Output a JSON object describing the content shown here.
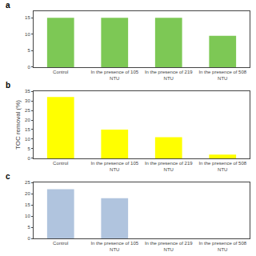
{
  "chart_data": [
    {
      "type": "bar",
      "title": "a",
      "categories": [
        "Control",
        "In the presence of 105\nNTU",
        "In the presence of 219\nNTU",
        "In the presence of 508\nNTU"
      ],
      "values": [
        15.0,
        15.0,
        15.0,
        9.5
      ],
      "color": "#7DC855",
      "ylim": [
        0,
        17
      ],
      "yticks": [
        0,
        5,
        10,
        15
      ],
      "grid": false
    },
    {
      "type": "bar",
      "title": "b",
      "ylabel": "TOC removal (%)",
      "categories": [
        "Control",
        "In the presence of 105\nNTU",
        "In the presence of 219\nNTU",
        "In the presence of 508\nNTU"
      ],
      "values": [
        32.0,
        15.0,
        11.0,
        2.0
      ],
      "color": "#FFFF00",
      "ylim": [
        0,
        35
      ],
      "yticks": [
        0,
        5,
        10,
        15,
        20,
        25,
        30,
        35
      ],
      "grid": false
    },
    {
      "type": "bar",
      "title": "c",
      "categories": [
        "Control",
        "In the presence of 105\nNTU",
        "In the presence of 219\nNTU",
        "In the presence of 508\nNTU"
      ],
      "values": [
        22.0,
        18.0,
        0,
        0
      ],
      "color": "#B0C4DE",
      "ylim": [
        0,
        25
      ],
      "yticks": [
        0,
        5,
        10,
        15,
        20,
        25
      ],
      "grid": false
    }
  ]
}
